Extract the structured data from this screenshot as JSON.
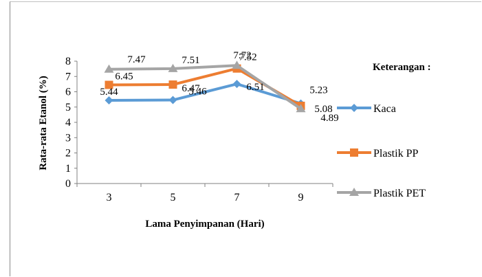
{
  "chart_data": {
    "type": "line",
    "title": "",
    "xlabel": "Lama Penyimpanan (Hari)",
    "ylabel": "Rata-rata Etanol (%)",
    "categories": [
      "3",
      "5",
      "7",
      "9"
    ],
    "ylim": [
      0,
      8
    ],
    "yticks": [
      "0",
      "1",
      "2",
      "3",
      "4",
      "5",
      "6",
      "7",
      "8"
    ],
    "grid": false,
    "legend": {
      "title": "Keterangan :",
      "position": "right"
    },
    "series": [
      {
        "name": "Kaca",
        "values": [
          5.44,
          5.46,
          6.51,
          5.23
        ],
        "labels": [
          "5.44",
          "5.46",
          "6.51",
          "5.23"
        ],
        "color": "#5b9bd5",
        "marker": "diamond"
      },
      {
        "name": "Plastik PP",
        "values": [
          6.45,
          6.47,
          7.52,
          5.08
        ],
        "labels": [
          "6.45",
          "6.47",
          "7.52",
          "5.08"
        ],
        "color": "#ed7d31",
        "marker": "square"
      },
      {
        "name": "Plastik PET",
        "values": [
          7.47,
          7.51,
          7.72,
          4.89
        ],
        "labels": [
          "7.47",
          "7.51",
          "7.72",
          "4.89"
        ],
        "color": "#a5a5a5",
        "marker": "triangle"
      }
    ]
  }
}
